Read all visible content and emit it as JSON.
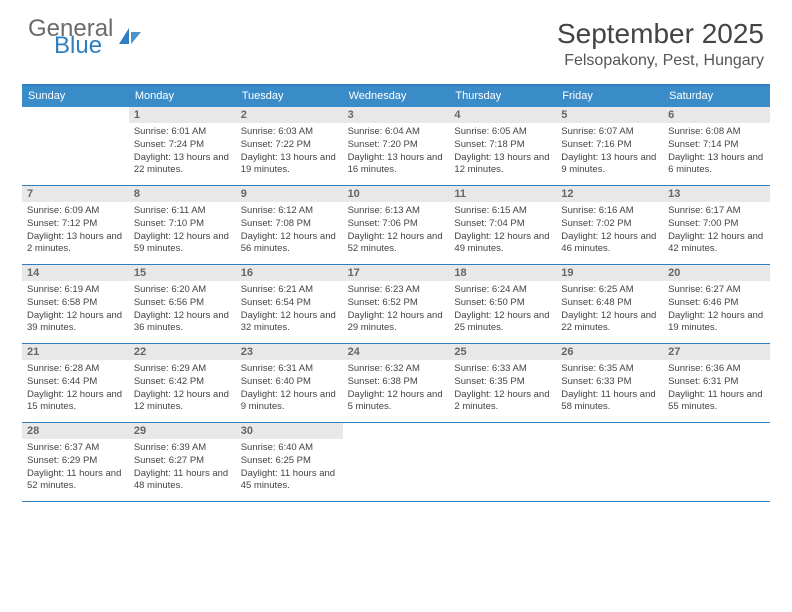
{
  "brand": {
    "word1": "General",
    "word2": "Blue",
    "word1_color": "#6b6b6b",
    "word2_color": "#2d7fc2",
    "icon_color": "#2d7fc2",
    "fontsize": 24
  },
  "title": {
    "month": "September 2025",
    "location": "Felsopakony, Pest, Hungary",
    "month_fontsize": 28,
    "location_fontsize": 16,
    "text_color": "#444444"
  },
  "calendar": {
    "type": "table",
    "header_bg": "#3a8cc9",
    "header_text_color": "#ffffff",
    "header_fontsize": 11,
    "daynum_bg": "#e8e8e8",
    "daynum_color": "#666666",
    "daynum_fontsize": 11,
    "body_fontsize": 9.5,
    "body_color": "#444444",
    "border_color": "#2d7fc2",
    "background_color": "#ffffff",
    "columns": [
      "Sunday",
      "Monday",
      "Tuesday",
      "Wednesday",
      "Thursday",
      "Friday",
      "Saturday"
    ],
    "weeks": [
      [
        {
          "num": "",
          "sunrise": "",
          "sunset": "",
          "daylight": ""
        },
        {
          "num": "1",
          "sunrise": "Sunrise: 6:01 AM",
          "sunset": "Sunset: 7:24 PM",
          "daylight": "Daylight: 13 hours and 22 minutes."
        },
        {
          "num": "2",
          "sunrise": "Sunrise: 6:03 AM",
          "sunset": "Sunset: 7:22 PM",
          "daylight": "Daylight: 13 hours and 19 minutes."
        },
        {
          "num": "3",
          "sunrise": "Sunrise: 6:04 AM",
          "sunset": "Sunset: 7:20 PM",
          "daylight": "Daylight: 13 hours and 16 minutes."
        },
        {
          "num": "4",
          "sunrise": "Sunrise: 6:05 AM",
          "sunset": "Sunset: 7:18 PM",
          "daylight": "Daylight: 13 hours and 12 minutes."
        },
        {
          "num": "5",
          "sunrise": "Sunrise: 6:07 AM",
          "sunset": "Sunset: 7:16 PM",
          "daylight": "Daylight: 13 hours and 9 minutes."
        },
        {
          "num": "6",
          "sunrise": "Sunrise: 6:08 AM",
          "sunset": "Sunset: 7:14 PM",
          "daylight": "Daylight: 13 hours and 6 minutes."
        }
      ],
      [
        {
          "num": "7",
          "sunrise": "Sunrise: 6:09 AM",
          "sunset": "Sunset: 7:12 PM",
          "daylight": "Daylight: 13 hours and 2 minutes."
        },
        {
          "num": "8",
          "sunrise": "Sunrise: 6:11 AM",
          "sunset": "Sunset: 7:10 PM",
          "daylight": "Daylight: 12 hours and 59 minutes."
        },
        {
          "num": "9",
          "sunrise": "Sunrise: 6:12 AM",
          "sunset": "Sunset: 7:08 PM",
          "daylight": "Daylight: 12 hours and 56 minutes."
        },
        {
          "num": "10",
          "sunrise": "Sunrise: 6:13 AM",
          "sunset": "Sunset: 7:06 PM",
          "daylight": "Daylight: 12 hours and 52 minutes."
        },
        {
          "num": "11",
          "sunrise": "Sunrise: 6:15 AM",
          "sunset": "Sunset: 7:04 PM",
          "daylight": "Daylight: 12 hours and 49 minutes."
        },
        {
          "num": "12",
          "sunrise": "Sunrise: 6:16 AM",
          "sunset": "Sunset: 7:02 PM",
          "daylight": "Daylight: 12 hours and 46 minutes."
        },
        {
          "num": "13",
          "sunrise": "Sunrise: 6:17 AM",
          "sunset": "Sunset: 7:00 PM",
          "daylight": "Daylight: 12 hours and 42 minutes."
        }
      ],
      [
        {
          "num": "14",
          "sunrise": "Sunrise: 6:19 AM",
          "sunset": "Sunset: 6:58 PM",
          "daylight": "Daylight: 12 hours and 39 minutes."
        },
        {
          "num": "15",
          "sunrise": "Sunrise: 6:20 AM",
          "sunset": "Sunset: 6:56 PM",
          "daylight": "Daylight: 12 hours and 36 minutes."
        },
        {
          "num": "16",
          "sunrise": "Sunrise: 6:21 AM",
          "sunset": "Sunset: 6:54 PM",
          "daylight": "Daylight: 12 hours and 32 minutes."
        },
        {
          "num": "17",
          "sunrise": "Sunrise: 6:23 AM",
          "sunset": "Sunset: 6:52 PM",
          "daylight": "Daylight: 12 hours and 29 minutes."
        },
        {
          "num": "18",
          "sunrise": "Sunrise: 6:24 AM",
          "sunset": "Sunset: 6:50 PM",
          "daylight": "Daylight: 12 hours and 25 minutes."
        },
        {
          "num": "19",
          "sunrise": "Sunrise: 6:25 AM",
          "sunset": "Sunset: 6:48 PM",
          "daylight": "Daylight: 12 hours and 22 minutes."
        },
        {
          "num": "20",
          "sunrise": "Sunrise: 6:27 AM",
          "sunset": "Sunset: 6:46 PM",
          "daylight": "Daylight: 12 hours and 19 minutes."
        }
      ],
      [
        {
          "num": "21",
          "sunrise": "Sunrise: 6:28 AM",
          "sunset": "Sunset: 6:44 PM",
          "daylight": "Daylight: 12 hours and 15 minutes."
        },
        {
          "num": "22",
          "sunrise": "Sunrise: 6:29 AM",
          "sunset": "Sunset: 6:42 PM",
          "daylight": "Daylight: 12 hours and 12 minutes."
        },
        {
          "num": "23",
          "sunrise": "Sunrise: 6:31 AM",
          "sunset": "Sunset: 6:40 PM",
          "daylight": "Daylight: 12 hours and 9 minutes."
        },
        {
          "num": "24",
          "sunrise": "Sunrise: 6:32 AM",
          "sunset": "Sunset: 6:38 PM",
          "daylight": "Daylight: 12 hours and 5 minutes."
        },
        {
          "num": "25",
          "sunrise": "Sunrise: 6:33 AM",
          "sunset": "Sunset: 6:35 PM",
          "daylight": "Daylight: 12 hours and 2 minutes."
        },
        {
          "num": "26",
          "sunrise": "Sunrise: 6:35 AM",
          "sunset": "Sunset: 6:33 PM",
          "daylight": "Daylight: 11 hours and 58 minutes."
        },
        {
          "num": "27",
          "sunrise": "Sunrise: 6:36 AM",
          "sunset": "Sunset: 6:31 PM",
          "daylight": "Daylight: 11 hours and 55 minutes."
        }
      ],
      [
        {
          "num": "28",
          "sunrise": "Sunrise: 6:37 AM",
          "sunset": "Sunset: 6:29 PM",
          "daylight": "Daylight: 11 hours and 52 minutes."
        },
        {
          "num": "29",
          "sunrise": "Sunrise: 6:39 AM",
          "sunset": "Sunset: 6:27 PM",
          "daylight": "Daylight: 11 hours and 48 minutes."
        },
        {
          "num": "30",
          "sunrise": "Sunrise: 6:40 AM",
          "sunset": "Sunset: 6:25 PM",
          "daylight": "Daylight: 11 hours and 45 minutes."
        },
        {
          "num": "",
          "sunrise": "",
          "sunset": "",
          "daylight": ""
        },
        {
          "num": "",
          "sunrise": "",
          "sunset": "",
          "daylight": ""
        },
        {
          "num": "",
          "sunrise": "",
          "sunset": "",
          "daylight": ""
        },
        {
          "num": "",
          "sunrise": "",
          "sunset": "",
          "daylight": ""
        }
      ]
    ]
  }
}
